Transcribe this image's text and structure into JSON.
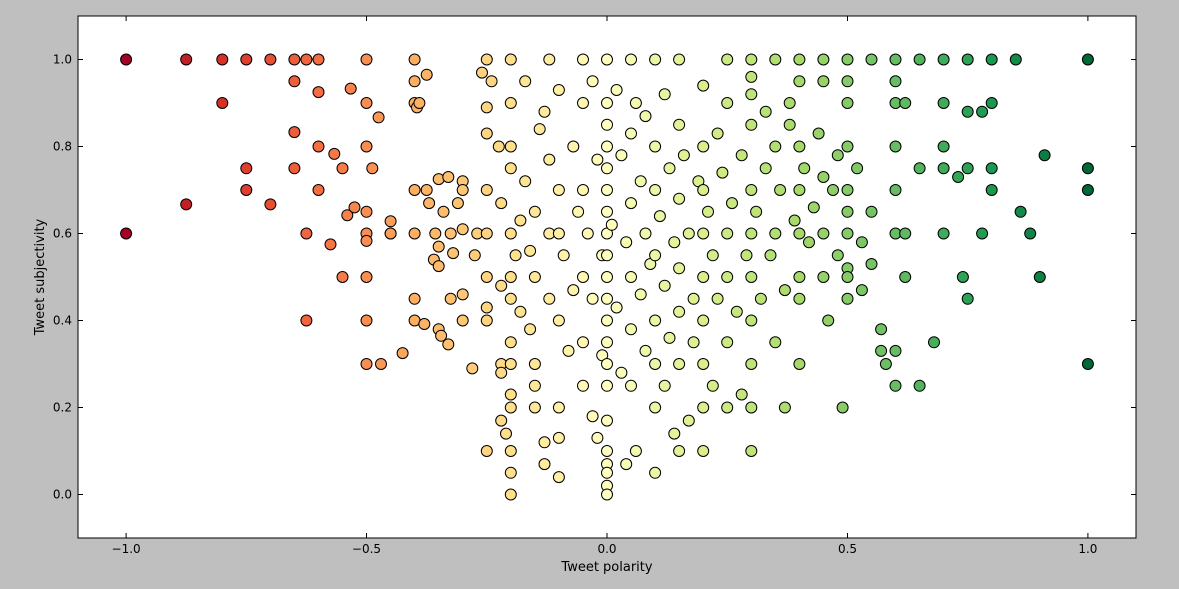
{
  "chart_data": {
    "type": "scatter",
    "title": "",
    "xlabel": "Tweet polarity",
    "ylabel": "Tweet subjectivity",
    "xlim": [
      -1.1,
      1.1
    ],
    "ylim": [
      -0.1,
      1.1
    ],
    "xticks": [
      -1.0,
      -0.5,
      0.0,
      0.5,
      1.0
    ],
    "xtick_labels": [
      "−1.0",
      "−0.5",
      "0.0",
      "0.5",
      "1.0"
    ],
    "yticks": [
      0.0,
      0.2,
      0.4,
      0.6,
      0.8,
      1.0
    ],
    "ytick_labels": [
      "0.0",
      "0.2",
      "0.4",
      "0.6",
      "0.8",
      "1.0"
    ],
    "grid": false,
    "legend": null,
    "colormap": "RdYlGn",
    "color_by": "x",
    "colors": {
      "figure_background": "#bfbfbf",
      "axes_background": "#ffffff",
      "marker_edge": "#000000",
      "cmap_low": "#a50026",
      "cmap_mid": "#ffffbf",
      "cmap_high": "#006837"
    },
    "points": [
      [
        -1.0,
        1.0
      ],
      [
        -1.0,
        0.6
      ],
      [
        -0.875,
        1.0
      ],
      [
        -0.875,
        0.667
      ],
      [
        -0.8,
        1.0
      ],
      [
        -0.8,
        0.9
      ],
      [
        -0.75,
        1.0
      ],
      [
        -0.75,
        0.75
      ],
      [
        -0.75,
        0.7
      ],
      [
        -0.7,
        1.0
      ],
      [
        -0.7,
        0.667
      ],
      [
        -0.65,
        1.0
      ],
      [
        -0.65,
        0.95
      ],
      [
        -0.65,
        0.833
      ],
      [
        -0.65,
        0.75
      ],
      [
        -0.625,
        1.0
      ],
      [
        -0.625,
        0.6
      ],
      [
        -0.625,
        0.4
      ],
      [
        -0.6,
        1.0
      ],
      [
        -0.6,
        0.925
      ],
      [
        -0.6,
        0.8
      ],
      [
        -0.6,
        0.7
      ],
      [
        -0.575,
        0.575
      ],
      [
        -0.567,
        0.783
      ],
      [
        -0.55,
        0.75
      ],
      [
        -0.55,
        0.5
      ],
      [
        -0.54,
        0.642
      ],
      [
        -0.533,
        0.933
      ],
      [
        -0.525,
        0.66
      ],
      [
        -0.5,
        1.0
      ],
      [
        -0.5,
        0.9
      ],
      [
        -0.5,
        0.8
      ],
      [
        -0.5,
        0.6
      ],
      [
        -0.5,
        0.583
      ],
      [
        -0.5,
        0.5
      ],
      [
        -0.5,
        0.4
      ],
      [
        -0.5,
        0.3
      ],
      [
        -0.5,
        0.65
      ],
      [
        -0.488,
        0.75
      ],
      [
        -0.475,
        0.867
      ],
      [
        -0.47,
        0.3
      ],
      [
        -0.45,
        0.6
      ],
      [
        -0.45,
        0.628
      ],
      [
        -0.45,
        0.6
      ],
      [
        -0.425,
        0.325
      ],
      [
        -0.4,
        1.0
      ],
      [
        -0.4,
        0.95
      ],
      [
        -0.4,
        0.9
      ],
      [
        -0.4,
        0.7
      ],
      [
        -0.4,
        0.6
      ],
      [
        -0.4,
        0.45
      ],
      [
        -0.4,
        0.4
      ],
      [
        -0.395,
        0.89
      ],
      [
        -0.39,
        0.9
      ],
      [
        -0.38,
        0.392
      ],
      [
        -0.375,
        0.965
      ],
      [
        -0.375,
        0.7
      ],
      [
        -0.37,
        0.67
      ],
      [
        -0.36,
        0.54
      ],
      [
        -0.357,
        0.6
      ],
      [
        -0.35,
        0.725
      ],
      [
        -0.35,
        0.57
      ],
      [
        -0.35,
        0.525
      ],
      [
        -0.35,
        0.38
      ],
      [
        -0.345,
        0.365
      ],
      [
        -0.34,
        0.65
      ],
      [
        -0.33,
        0.73
      ],
      [
        -0.33,
        0.345
      ],
      [
        -0.325,
        0.6
      ],
      [
        -0.325,
        0.45
      ],
      [
        -0.32,
        0.555
      ],
      [
        -0.31,
        0.67
      ],
      [
        -0.3,
        0.72
      ],
      [
        -0.3,
        0.7
      ],
      [
        -0.3,
        0.61
      ],
      [
        -0.3,
        0.4
      ],
      [
        -0.3,
        0.46
      ],
      [
        -0.28,
        0.29
      ],
      [
        -0.275,
        0.55
      ],
      [
        -0.27,
        0.6
      ],
      [
        -0.26,
        0.97
      ],
      [
        -0.25,
        1.0
      ],
      [
        -0.25,
        0.89
      ],
      [
        -0.25,
        0.83
      ],
      [
        -0.25,
        0.7
      ],
      [
        -0.25,
        0.6
      ],
      [
        -0.25,
        0.5
      ],
      [
        -0.25,
        0.43
      ],
      [
        -0.25,
        0.4
      ],
      [
        -0.25,
        0.1
      ],
      [
        -0.24,
        0.95
      ],
      [
        -0.225,
        0.8
      ],
      [
        -0.22,
        0.67
      ],
      [
        -0.22,
        0.48
      ],
      [
        -0.22,
        0.3
      ],
      [
        -0.22,
        0.28
      ],
      [
        -0.22,
        0.17
      ],
      [
        -0.21,
        0.14
      ],
      [
        -0.2,
        1.0
      ],
      [
        -0.2,
        0.9
      ],
      [
        -0.2,
        0.8
      ],
      [
        -0.2,
        0.75
      ],
      [
        -0.2,
        0.6
      ],
      [
        -0.2,
        0.5
      ],
      [
        -0.2,
        0.45
      ],
      [
        -0.2,
        0.35
      ],
      [
        -0.2,
        0.3
      ],
      [
        -0.2,
        0.23
      ],
      [
        -0.2,
        0.2
      ],
      [
        -0.2,
        0.1
      ],
      [
        -0.2,
        0.05
      ],
      [
        -0.2,
        0.0
      ],
      [
        -0.19,
        0.55
      ],
      [
        -0.18,
        0.63
      ],
      [
        -0.18,
        0.42
      ],
      [
        -0.17,
        0.95
      ],
      [
        -0.17,
        0.72
      ],
      [
        -0.16,
        0.56
      ],
      [
        -0.16,
        0.38
      ],
      [
        -0.15,
        0.65
      ],
      [
        -0.15,
        0.5
      ],
      [
        -0.15,
        0.3
      ],
      [
        -0.15,
        0.25
      ],
      [
        -0.15,
        0.2
      ],
      [
        -0.14,
        0.84
      ],
      [
        -0.13,
        0.88
      ],
      [
        -0.13,
        0.12
      ],
      [
        -0.13,
        0.07
      ],
      [
        -0.12,
        1.0
      ],
      [
        -0.12,
        0.77
      ],
      [
        -0.12,
        0.6
      ],
      [
        -0.12,
        0.45
      ],
      [
        -0.1,
        0.93
      ],
      [
        -0.1,
        0.7
      ],
      [
        -0.1,
        0.6
      ],
      [
        -0.1,
        0.4
      ],
      [
        -0.1,
        0.2
      ],
      [
        -0.1,
        0.13
      ],
      [
        -0.1,
        0.04
      ],
      [
        -0.09,
        0.55
      ],
      [
        -0.08,
        0.33
      ],
      [
        -0.07,
        0.8
      ],
      [
        -0.07,
        0.47
      ],
      [
        -0.06,
        0.65
      ],
      [
        -0.05,
        1.0
      ],
      [
        -0.05,
        0.9
      ],
      [
        -0.05,
        0.7
      ],
      [
        -0.05,
        0.5
      ],
      [
        -0.05,
        0.35
      ],
      [
        -0.05,
        0.25
      ],
      [
        -0.04,
        0.6
      ],
      [
        -0.03,
        0.95
      ],
      [
        -0.03,
        0.45
      ],
      [
        -0.03,
        0.18
      ],
      [
        -0.02,
        0.77
      ],
      [
        -0.02,
        0.13
      ],
      [
        -0.01,
        0.55
      ],
      [
        -0.01,
        0.32
      ],
      [
        0.0,
        1.0
      ],
      [
        0.0,
        0.9
      ],
      [
        0.0,
        0.85
      ],
      [
        0.0,
        0.8
      ],
      [
        0.0,
        0.75
      ],
      [
        0.0,
        0.7
      ],
      [
        0.0,
        0.65
      ],
      [
        0.0,
        0.6
      ],
      [
        0.0,
        0.55
      ],
      [
        0.0,
        0.5
      ],
      [
        0.0,
        0.45
      ],
      [
        0.0,
        0.4
      ],
      [
        0.0,
        0.35
      ],
      [
        0.0,
        0.3
      ],
      [
        0.0,
        0.25
      ],
      [
        0.0,
        0.17
      ],
      [
        0.0,
        0.1
      ],
      [
        0.0,
        0.07
      ],
      [
        0.0,
        0.05
      ],
      [
        0.0,
        0.02
      ],
      [
        0.0,
        0.0
      ],
      [
        0.01,
        0.62
      ],
      [
        0.02,
        0.93
      ],
      [
        0.02,
        0.43
      ],
      [
        0.03,
        0.78
      ],
      [
        0.03,
        0.28
      ],
      [
        0.04,
        0.58
      ],
      [
        0.04,
        0.07
      ],
      [
        0.05,
        1.0
      ],
      [
        0.05,
        0.83
      ],
      [
        0.05,
        0.67
      ],
      [
        0.05,
        0.5
      ],
      [
        0.05,
        0.38
      ],
      [
        0.05,
        0.25
      ],
      [
        0.06,
        0.9
      ],
      [
        0.06,
        0.1
      ],
      [
        0.07,
        0.72
      ],
      [
        0.07,
        0.46
      ],
      [
        0.08,
        0.87
      ],
      [
        0.08,
        0.6
      ],
      [
        0.08,
        0.33
      ],
      [
        0.09,
        0.53
      ],
      [
        0.1,
        1.0
      ],
      [
        0.1,
        0.8
      ],
      [
        0.1,
        0.7
      ],
      [
        0.1,
        0.55
      ],
      [
        0.1,
        0.4
      ],
      [
        0.1,
        0.3
      ],
      [
        0.1,
        0.2
      ],
      [
        0.1,
        0.05
      ],
      [
        0.11,
        0.64
      ],
      [
        0.12,
        0.92
      ],
      [
        0.12,
        0.48
      ],
      [
        0.12,
        0.25
      ],
      [
        0.13,
        0.75
      ],
      [
        0.13,
        0.36
      ],
      [
        0.14,
        0.58
      ],
      [
        0.14,
        0.14
      ],
      [
        0.15,
        1.0
      ],
      [
        0.15,
        0.85
      ],
      [
        0.15,
        0.68
      ],
      [
        0.15,
        0.52
      ],
      [
        0.15,
        0.42
      ],
      [
        0.15,
        0.3
      ],
      [
        0.15,
        0.1
      ],
      [
        0.16,
        0.78
      ],
      [
        0.17,
        0.6
      ],
      [
        0.17,
        0.17
      ],
      [
        0.18,
        0.45
      ],
      [
        0.18,
        0.35
      ],
      [
        0.19,
        0.72
      ],
      [
        0.2,
        0.94
      ],
      [
        0.2,
        0.8
      ],
      [
        0.2,
        0.7
      ],
      [
        0.2,
        0.6
      ],
      [
        0.2,
        0.5
      ],
      [
        0.2,
        0.4
      ],
      [
        0.2,
        0.3
      ],
      [
        0.2,
        0.2
      ],
      [
        0.2,
        0.1
      ],
      [
        0.21,
        0.65
      ],
      [
        0.22,
        0.55
      ],
      [
        0.22,
        0.25
      ],
      [
        0.23,
        0.83
      ],
      [
        0.23,
        0.45
      ],
      [
        0.24,
        0.74
      ],
      [
        0.25,
        1.0
      ],
      [
        0.25,
        0.9
      ],
      [
        0.25,
        0.6
      ],
      [
        0.25,
        0.5
      ],
      [
        0.25,
        0.35
      ],
      [
        0.25,
        0.2
      ],
      [
        0.26,
        0.67
      ],
      [
        0.27,
        0.42
      ],
      [
        0.28,
        0.78
      ],
      [
        0.28,
        0.23
      ],
      [
        0.29,
        0.55
      ],
      [
        0.3,
        1.0
      ],
      [
        0.3,
        0.96
      ],
      [
        0.3,
        0.92
      ],
      [
        0.3,
        0.85
      ],
      [
        0.3,
        0.7
      ],
      [
        0.3,
        0.6
      ],
      [
        0.3,
        0.5
      ],
      [
        0.3,
        0.4
      ],
      [
        0.3,
        0.3
      ],
      [
        0.3,
        0.2
      ],
      [
        0.3,
        0.1
      ],
      [
        0.31,
        0.65
      ],
      [
        0.32,
        0.45
      ],
      [
        0.33,
        0.88
      ],
      [
        0.33,
        0.75
      ],
      [
        0.34,
        0.55
      ],
      [
        0.35,
        1.0
      ],
      [
        0.35,
        0.8
      ],
      [
        0.35,
        0.6
      ],
      [
        0.35,
        0.35
      ],
      [
        0.36,
        0.7
      ],
      [
        0.37,
        0.47
      ],
      [
        0.37,
        0.2
      ],
      [
        0.38,
        0.9
      ],
      [
        0.38,
        0.85
      ],
      [
        0.39,
        0.63
      ],
      [
        0.4,
        1.0
      ],
      [
        0.4,
        0.95
      ],
      [
        0.4,
        0.8
      ],
      [
        0.4,
        0.7
      ],
      [
        0.4,
        0.6
      ],
      [
        0.4,
        0.5
      ],
      [
        0.4,
        0.45
      ],
      [
        0.4,
        0.3
      ],
      [
        0.41,
        0.75
      ],
      [
        0.42,
        0.58
      ],
      [
        0.43,
        0.66
      ],
      [
        0.44,
        0.83
      ],
      [
        0.45,
        1.0
      ],
      [
        0.45,
        0.95
      ],
      [
        0.45,
        0.73
      ],
      [
        0.45,
        0.6
      ],
      [
        0.45,
        0.5
      ],
      [
        0.46,
        0.4
      ],
      [
        0.47,
        0.7
      ],
      [
        0.48,
        0.78
      ],
      [
        0.48,
        0.55
      ],
      [
        0.49,
        0.2
      ],
      [
        0.5,
        1.0
      ],
      [
        0.5,
        0.95
      ],
      [
        0.5,
        0.9
      ],
      [
        0.5,
        0.8
      ],
      [
        0.5,
        0.7
      ],
      [
        0.5,
        0.65
      ],
      [
        0.5,
        0.6
      ],
      [
        0.5,
        0.52
      ],
      [
        0.5,
        0.5
      ],
      [
        0.5,
        0.45
      ],
      [
        0.52,
        0.75
      ],
      [
        0.53,
        0.58
      ],
      [
        0.53,
        0.47
      ],
      [
        0.55,
        1.0
      ],
      [
        0.55,
        0.65
      ],
      [
        0.55,
        0.53
      ],
      [
        0.57,
        0.38
      ],
      [
        0.57,
        0.33
      ],
      [
        0.58,
        0.3
      ],
      [
        0.6,
        1.0
      ],
      [
        0.6,
        0.95
      ],
      [
        0.6,
        0.9
      ],
      [
        0.6,
        0.8
      ],
      [
        0.6,
        0.7
      ],
      [
        0.6,
        0.6
      ],
      [
        0.6,
        0.33
      ],
      [
        0.6,
        0.25
      ],
      [
        0.62,
        0.9
      ],
      [
        0.62,
        0.6
      ],
      [
        0.62,
        0.5
      ],
      [
        0.65,
        1.0
      ],
      [
        0.65,
        0.75
      ],
      [
        0.65,
        0.25
      ],
      [
        0.68,
        0.35
      ],
      [
        0.7,
        1.0
      ],
      [
        0.7,
        0.9
      ],
      [
        0.7,
        0.8
      ],
      [
        0.7,
        0.75
      ],
      [
        0.7,
        0.6
      ],
      [
        0.73,
        0.73
      ],
      [
        0.74,
        0.5
      ],
      [
        0.75,
        1.0
      ],
      [
        0.75,
        0.88
      ],
      [
        0.75,
        0.75
      ],
      [
        0.75,
        0.45
      ],
      [
        0.78,
        0.88
      ],
      [
        0.78,
        0.6
      ],
      [
        0.8,
        1.0
      ],
      [
        0.8,
        0.9
      ],
      [
        0.8,
        0.75
      ],
      [
        0.8,
        0.7
      ],
      [
        0.85,
        1.0
      ],
      [
        0.86,
        0.65
      ],
      [
        0.88,
        0.6
      ],
      [
        0.9,
        0.5
      ],
      [
        0.91,
        0.78
      ],
      [
        1.0,
        1.0
      ],
      [
        1.0,
        0.75
      ],
      [
        1.0,
        0.7
      ],
      [
        1.0,
        0.3
      ]
    ]
  }
}
